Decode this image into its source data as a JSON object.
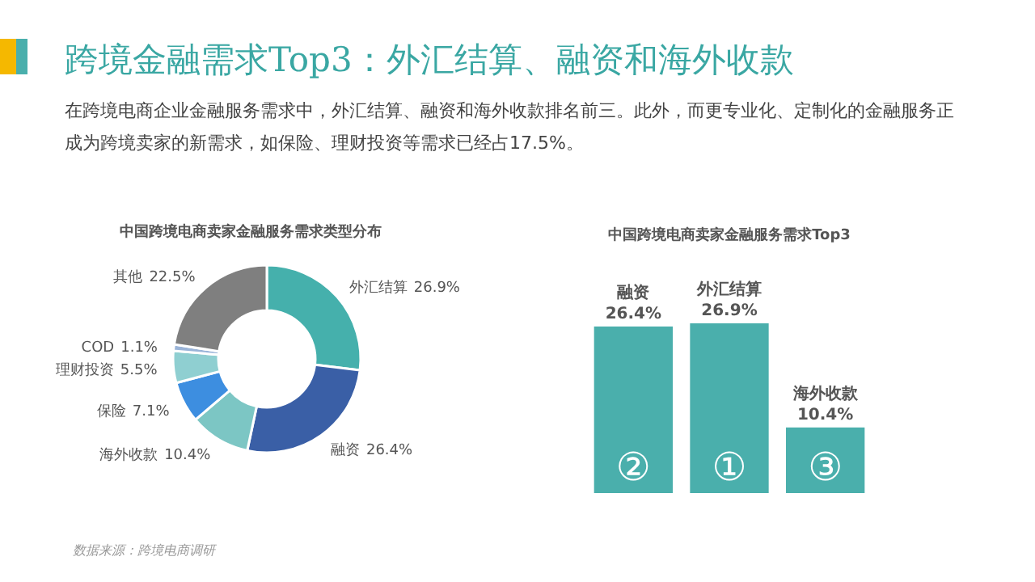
{
  "chart_data": [
    {
      "type": "other",
      "title": "跨境金融需求Top3：外汇结算、融资和海外收款",
      "subtitle": "在跨境电商企业金融服务需求中，外汇结算、融资和海外收款排名前三。此外，而更专业化、定制化的金融服务正成为跨境卖家的新需求，如保险、理财投资等需求已经占17.5%。",
      "annotations": [
        "数据来源：跨境电商调研"
      ]
    },
    {
      "type": "donut",
      "title": "中国跨境电商卖家金融服务需求类型分布",
      "categories": [
        "外汇结算",
        "融资",
        "海外收款",
        "保险",
        "理财投资",
        "COD",
        "其他"
      ],
      "values": [
        26.9,
        26.4,
        10.4,
        7.1,
        5.5,
        1.1,
        22.5
      ],
      "colors": [
        "#45b0ac",
        "#3a5fa6",
        "#7cc6c4",
        "#3d8ee0",
        "#8fcfd1",
        "#9ab4d8",
        "#7f7f7f"
      ],
      "value_labels": [
        "26.9%",
        "26.4%",
        "10.4%",
        "7.1%",
        "5.5%",
        "1.1%",
        "22.5%"
      ]
    },
    {
      "type": "bar",
      "title": "中国跨境电商卖家金融服务需求Top3",
      "categories": [
        "融资",
        "外汇结算",
        "海外收款"
      ],
      "values": [
        26.4,
        26.9,
        10.4
      ],
      "color": "#4aafac",
      "value_labels": [
        "26.4%",
        "26.9%",
        "10.4%"
      ],
      "annotations": [
        "②",
        "①",
        "③"
      ]
    }
  ]
}
